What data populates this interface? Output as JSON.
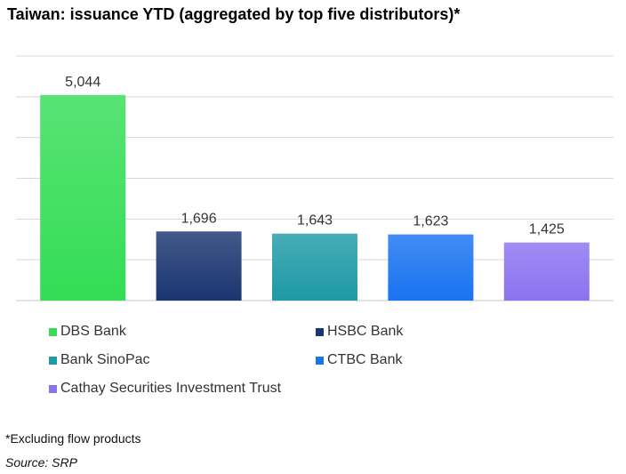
{
  "title": "Taiwan: issuance YTD (aggregated by top five distributors)*",
  "footnote": "*Excluding flow products",
  "source": "Source: SRP",
  "chart_data": {
    "type": "bar",
    "categories": [
      "DBS Bank",
      "HSBC Bank",
      "Bank SinoPac",
      "CTBC Bank",
      "Cathay Securities Investment Trust"
    ],
    "values": [
      5044,
      1696,
      1643,
      1623,
      1425
    ],
    "value_labels": [
      "5,044",
      "1,696",
      "1,643",
      "1,623",
      "1,425"
    ],
    "ylim": [
      0,
      6000
    ],
    "grid": true,
    "legend_position": "bottom",
    "colors": [
      "#33dd55",
      "#1a3570",
      "#1e9aa6",
      "#1a73f0",
      "#8b73f0"
    ]
  }
}
